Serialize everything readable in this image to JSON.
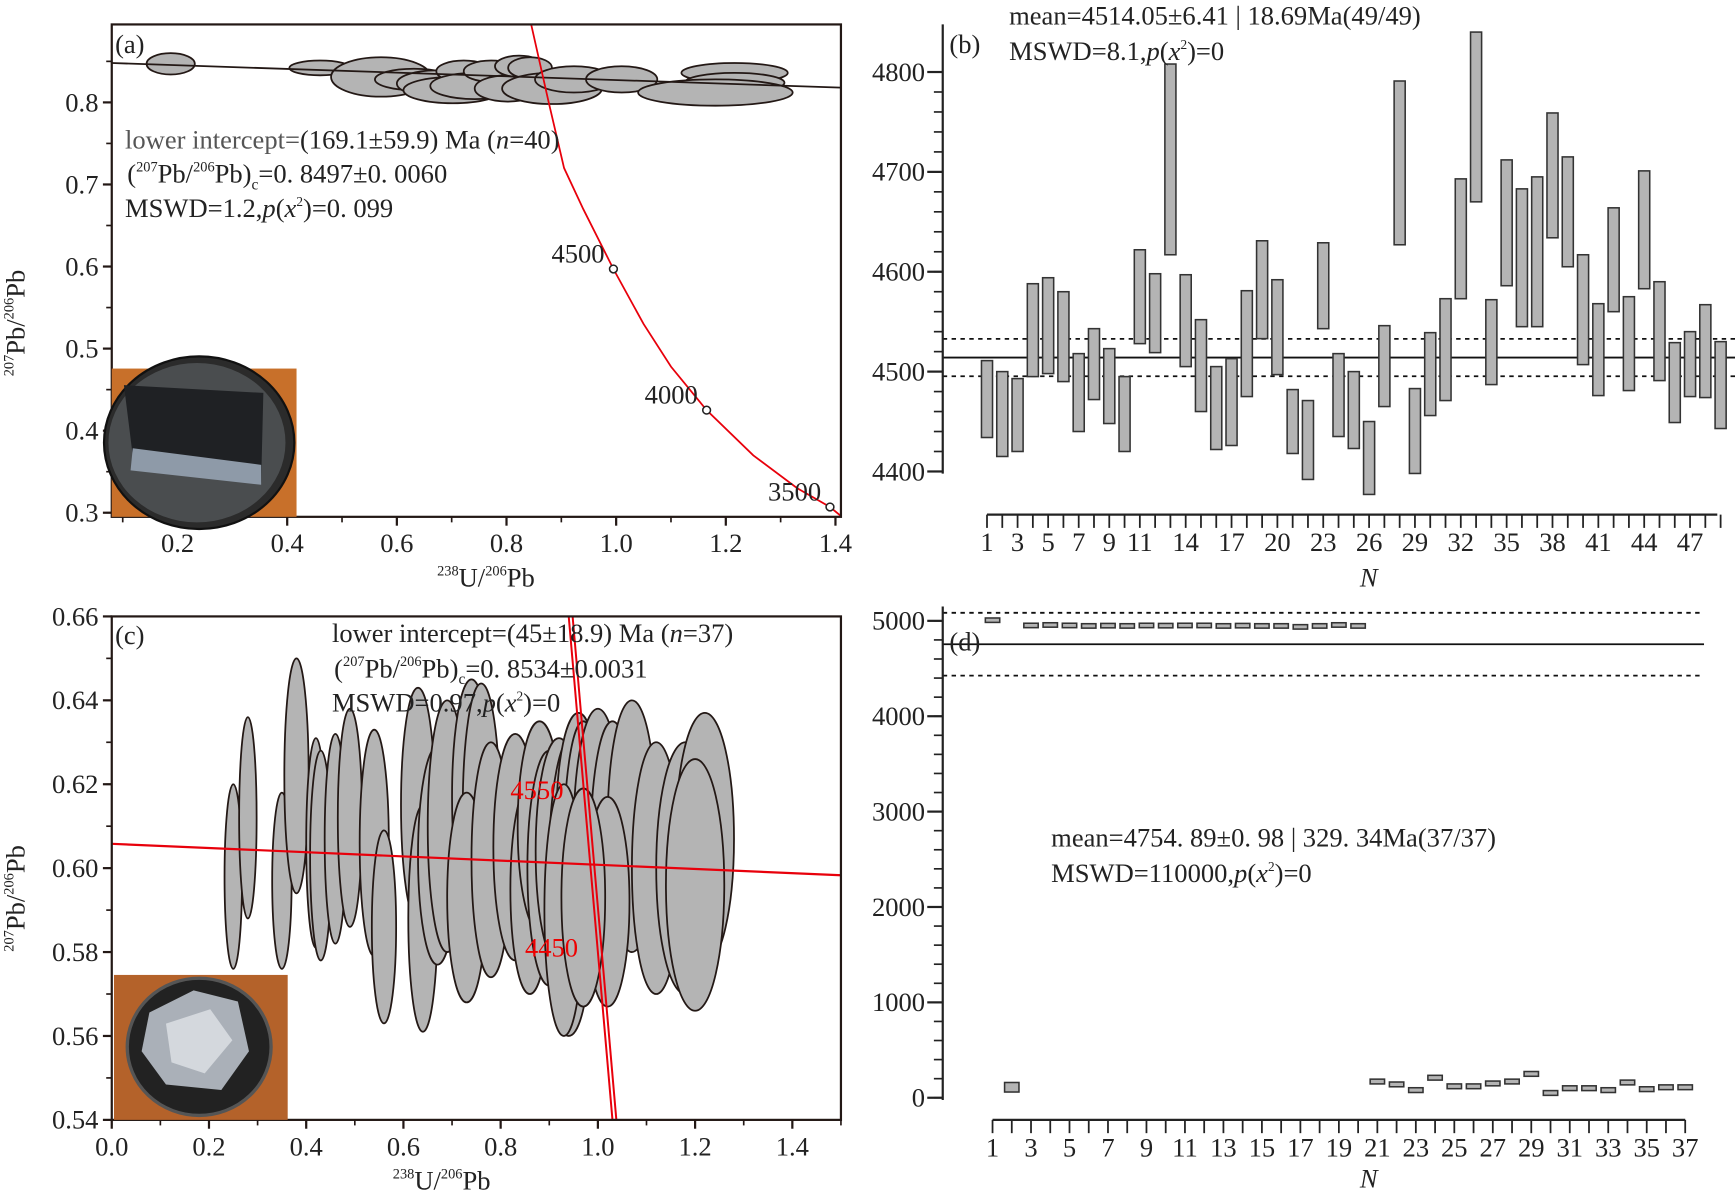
{
  "chart_data": [
    {
      "panel": "(a)",
      "type": "scatter",
      "subtype": "concordia-ellipses",
      "xlabel": {
        "sup1": "238",
        "main1": "U/",
        "sup2": "206",
        "main2": "Pb"
      },
      "ylabel": {
        "sup1": "207",
        "main1": "Pb/",
        "sup2": "206",
        "main2": "Pb"
      },
      "xlim": [
        0.08,
        1.41
      ],
      "ylim": [
        0.295,
        0.895
      ],
      "xticks": [
        "0.2",
        "0.4",
        "0.6",
        "0.8",
        "1.0",
        "1.2",
        "1.4"
      ],
      "xtick_values": [
        0.2,
        0.4,
        0.6,
        0.8,
        1.0,
        1.2,
        1.4
      ],
      "yticks": [
        "0.3",
        "0.4",
        "0.5",
        "0.6",
        "0.7",
        "0.8"
      ],
      "ytick_values": [
        0.3,
        0.4,
        0.5,
        0.6,
        0.7,
        0.8
      ],
      "annotation": {
        "line1_a": "lower intercept=",
        "line1_b": "(169.1±59.9) Ma (",
        "line1_n": "n",
        "line1_c": "=40)",
        "line2_a": "(",
        "line2_s1": "207",
        "line2_b": "Pb/",
        "line2_s2": "206",
        "line2_c": "Pb)",
        "line2_sub": "c",
        "line2_d": "=0. 8497±0. 0060",
        "line3_a": "MSWD=1.2,",
        "line3_p": "p",
        "line3_b": "(",
        "line3_x": "x",
        "line3_sup": "2",
        "line3_c": ")=0. 099"
      },
      "discordia": [
        [
          0.08,
          0.848
        ],
        [
          1.41,
          0.818
        ]
      ],
      "concordia": [
        [
          0.845,
          0.895
        ],
        [
          0.877,
          0.8
        ],
        [
          0.905,
          0.72
        ],
        [
          0.94,
          0.67
        ],
        [
          0.995,
          0.597
        ],
        [
          1.05,
          0.53
        ],
        [
          1.1,
          0.478
        ],
        [
          1.165,
          0.425
        ],
        [
          1.25,
          0.37
        ],
        [
          1.33,
          0.33
        ],
        [
          1.39,
          0.307
        ],
        [
          1.41,
          0.296
        ]
      ],
      "age_markers": [
        {
          "label": "4500",
          "x": 0.995,
          "y": 0.597
        },
        {
          "label": "4000",
          "x": 1.165,
          "y": 0.425
        },
        {
          "label": "3500",
          "x": 1.39,
          "y": 0.307
        }
      ],
      "ellipses": [
        [
          0.1875,
          0.847,
          0.044,
          0.013
        ],
        [
          0.46,
          0.842,
          0.056,
          0.009
        ],
        [
          0.571,
          0.831,
          0.091,
          0.024
        ],
        [
          0.631,
          0.828,
          0.071,
          0.013
        ],
        [
          0.671,
          0.823,
          0.071,
          0.016
        ],
        [
          0.702,
          0.815,
          0.09,
          0.016
        ],
        [
          0.722,
          0.838,
          0.05,
          0.013
        ],
        [
          0.742,
          0.82,
          0.081,
          0.016
        ],
        [
          0.772,
          0.838,
          0.05,
          0.013
        ],
        [
          0.802,
          0.817,
          0.06,
          0.016
        ],
        [
          0.823,
          0.844,
          0.044,
          0.013
        ],
        [
          0.843,
          0.842,
          0.04,
          0.013
        ],
        [
          0.883,
          0.817,
          0.091,
          0.019
        ],
        [
          0.923,
          0.828,
          0.071,
          0.016
        ],
        [
          1.01,
          0.828,
          0.065,
          0.016
        ],
        [
          1.216,
          0.836,
          0.097,
          0.012
        ],
        [
          1.216,
          0.824,
          0.091,
          0.012
        ],
        [
          1.181,
          0.812,
          0.141,
          0.016
        ]
      ]
    },
    {
      "panel": "(b)",
      "type": "bar",
      "subtype": "weighted-mean-error-bars",
      "xlabel": "N",
      "ylim": [
        4400,
        4800
      ],
      "yticks": [
        "4400",
        "4500",
        "4600",
        "4700",
        "4800"
      ],
      "ytick_values": [
        4400,
        4500,
        4600,
        4700,
        4800
      ],
      "xticks": [
        "1",
        "3",
        "5",
        "7",
        "9",
        "11",
        "14",
        "17",
        "20",
        "23",
        "26",
        "29",
        "32",
        "35",
        "38",
        "41",
        "44",
        "47"
      ],
      "n_count": 49,
      "mean": 4514.05,
      "band": [
        4495.36,
        4532.74
      ],
      "annotation": {
        "line1": "mean=4514.05±6.41 | 18.69Ma(49/49)",
        "line2_a": "MSWD=8.1,",
        "line2_p": "p",
        "line2_b": "(",
        "line2_x": "x",
        "line2_sup": "2",
        "line2_c": ")=0"
      },
      "ranges": [
        [
          4434,
          4511
        ],
        [
          4415,
          4500
        ],
        [
          4420,
          4493
        ],
        [
          4495,
          4588
        ],
        [
          4498,
          4594
        ],
        [
          4490,
          4580
        ],
        [
          4440,
          4518
        ],
        [
          4472,
          4543
        ],
        [
          4448,
          4523
        ],
        [
          4420,
          4495
        ],
        [
          4528,
          4622
        ],
        [
          4519,
          4598
        ],
        [
          4617,
          4808
        ],
        [
          4505,
          4597
        ],
        [
          4460,
          4552
        ],
        [
          4422,
          4505
        ],
        [
          4426,
          4513
        ],
        [
          4475,
          4581
        ],
        [
          4533,
          4631
        ],
        [
          4497,
          4592
        ],
        [
          4418,
          4482
        ],
        [
          4392,
          4471
        ],
        [
          4543,
          4629
        ],
        [
          4435,
          4518
        ],
        [
          4423,
          4500
        ],
        [
          4377,
          4450
        ],
        [
          4465,
          4546
        ],
        [
          4627,
          4791
        ],
        [
          4398,
          4483
        ],
        [
          4456,
          4539
        ],
        [
          4471,
          4573
        ],
        [
          4573,
          4693
        ],
        [
          4670,
          4840
        ],
        [
          4487,
          4572
        ],
        [
          4586,
          4712
        ],
        [
          4545,
          4683
        ],
        [
          4545,
          4695
        ],
        [
          4634,
          4759
        ],
        [
          4605,
          4715
        ],
        [
          4507,
          4617
        ],
        [
          4476,
          4568
        ],
        [
          4560,
          4664
        ],
        [
          4481,
          4575
        ],
        [
          4583,
          4701
        ],
        [
          4491,
          4590
        ],
        [
          4449,
          4529
        ],
        [
          4475,
          4540
        ],
        [
          4474,
          4567
        ],
        [
          4443,
          4530
        ]
      ]
    },
    {
      "panel": "(c)",
      "type": "scatter",
      "subtype": "concordia-ellipses",
      "xlabel": {
        "sup1": "238",
        "main1": "U/",
        "sup2": "206",
        "main2": "Pb"
      },
      "ylabel": {
        "sup1": "207",
        "main1": "Pb/",
        "sup2": "206",
        "main2": "Pb"
      },
      "xlim": [
        0.0,
        1.5
      ],
      "ylim": [
        0.54,
        0.66
      ],
      "xticks": [
        "0.0",
        "0.2",
        "0.4",
        "0.6",
        "0.8",
        "1.0",
        "1.2",
        "1.4"
      ],
      "xtick_values": [
        0,
        0.2,
        0.4,
        0.6,
        0.8,
        1.0,
        1.2,
        1.4
      ],
      "yticks": [
        "0.54",
        "0.56",
        "0.58",
        "0.60",
        "0.62",
        "0.64",
        "0.66"
      ],
      "ytick_values": [
        0.54,
        0.56,
        0.58,
        0.6,
        0.62,
        0.64,
        0.66
      ],
      "annotation": {
        "line1_a": "lower intercept=",
        "line1_b": "(45±18.9) Ma (",
        "line1_n": "n",
        "line1_c": "=37)",
        "line2_a": "(",
        "line2_s1": "207",
        "line2_b": "Pb/",
        "line2_s2": "206",
        "line2_c": "Pb)",
        "line2_sub": "c",
        "line2_d": "=0. 8534±0.0031",
        "line3_a": "MSWD=0.97,",
        "line3_p": "p",
        "line3_b": "(",
        "line3_x": "x",
        "line3_sup": "2",
        "line3_c": ")=0"
      },
      "discordia": [
        [
          0.0,
          0.6058
        ],
        [
          1.5,
          0.5983
        ]
      ],
      "concordia": [
        [
          [
            0.94,
            0.66
          ],
          [
            1.03,
            0.54
          ]
        ],
        [
          [
            0.948,
            0.66
          ],
          [
            1.038,
            0.54
          ]
        ]
      ],
      "age_labels": [
        {
          "label": "4550",
          "x": 0.82,
          "y": 0.6165
        },
        {
          "label": "4450",
          "x": 0.85,
          "y": 0.579
        }
      ],
      "ellipses": [
        [
          0.25,
          0.598,
          0.018,
          0.022
        ],
        [
          0.28,
          0.612,
          0.018,
          0.024
        ],
        [
          0.35,
          0.597,
          0.02,
          0.021
        ],
        [
          0.38,
          0.622,
          0.025,
          0.028
        ],
        [
          0.42,
          0.606,
          0.02,
          0.025
        ],
        [
          0.43,
          0.603,
          0.022,
          0.025
        ],
        [
          0.46,
          0.607,
          0.022,
          0.025
        ],
        [
          0.49,
          0.612,
          0.025,
          0.026
        ],
        [
          0.54,
          0.606,
          0.03,
          0.027
        ],
        [
          0.56,
          0.586,
          0.025,
          0.023
        ],
        [
          0.63,
          0.615,
          0.035,
          0.028
        ],
        [
          0.64,
          0.588,
          0.03,
          0.027
        ],
        [
          0.67,
          0.603,
          0.04,
          0.026
        ],
        [
          0.69,
          0.61,
          0.04,
          0.03
        ],
        [
          0.74,
          0.617,
          0.04,
          0.028
        ],
        [
          0.76,
          0.614,
          0.038,
          0.03
        ],
        [
          0.73,
          0.593,
          0.04,
          0.025
        ],
        [
          0.78,
          0.602,
          0.04,
          0.028
        ],
        [
          0.83,
          0.605,
          0.045,
          0.027
        ],
        [
          0.86,
          0.595,
          0.04,
          0.025
        ],
        [
          0.88,
          0.61,
          0.045,
          0.025
        ],
        [
          0.9,
          0.6,
          0.045,
          0.028
        ],
        [
          0.92,
          0.604,
          0.048,
          0.027
        ],
        [
          0.95,
          0.602,
          0.05,
          0.03
        ],
        [
          0.96,
          0.612,
          0.045,
          0.025
        ],
        [
          0.97,
          0.605,
          0.04,
          0.03
        ],
        [
          0.94,
          0.585,
          0.045,
          0.025
        ],
        [
          0.93,
          0.59,
          0.04,
          0.03
        ],
        [
          1.0,
          0.608,
          0.05,
          0.03
        ],
        [
          1.03,
          0.605,
          0.045,
          0.03
        ],
        [
          1.07,
          0.61,
          0.05,
          0.03
        ],
        [
          1.02,
          0.592,
          0.045,
          0.025
        ],
        [
          1.12,
          0.6,
          0.05,
          0.03
        ],
        [
          1.18,
          0.6,
          0.06,
          0.03
        ],
        [
          1.22,
          0.607,
          0.06,
          0.03
        ],
        [
          1.2,
          0.596,
          0.06,
          0.03
        ],
        [
          0.97,
          0.593,
          0.045,
          0.026
        ]
      ]
    },
    {
      "panel": "(d)",
      "type": "bar",
      "subtype": "weighted-mean-error-bars",
      "xlabel": "N",
      "ylim": [
        0,
        5000
      ],
      "yticks": [
        "0",
        "1000",
        "2000",
        "3000",
        "4000",
        "5000"
      ],
      "ytick_values": [
        0,
        1000,
        2000,
        3000,
        4000,
        5000
      ],
      "xticks": [
        "1",
        "3",
        "5",
        "7",
        "9",
        "11",
        "13",
        "15",
        "17",
        "19",
        "21",
        "23",
        "25",
        "27",
        "29",
        "31",
        "33",
        "35",
        "37"
      ],
      "n_count": 37,
      "mean": 4754.89,
      "band": [
        4425.55,
        5084.23
      ],
      "annotation": {
        "line1": "mean=4754. 89±0. 98 | 329. 34Ma(37/37)",
        "line2_a": "MSWD=110000,",
        "line2_p": "p",
        "line2_b": "(",
        "line2_x": "x",
        "line2_sup": "2",
        "line2_c": ")=0"
      },
      "ranges": [
        [
          4990,
          5030
        ],
        [
          60,
          160
        ],
        [
          4950,
          4975
        ],
        [
          4955,
          4980
        ],
        [
          4950,
          4975
        ],
        [
          4945,
          4970
        ],
        [
          4948,
          4973
        ],
        [
          4945,
          4970
        ],
        [
          4950,
          4975
        ],
        [
          4948,
          4973
        ],
        [
          4950,
          4975
        ],
        [
          4950,
          4975
        ],
        [
          4945,
          4970
        ],
        [
          4948,
          4973
        ],
        [
          4945,
          4970
        ],
        [
          4945,
          4970
        ],
        [
          4935,
          4960
        ],
        [
          4945,
          4970
        ],
        [
          4955,
          4980
        ],
        [
          4945,
          4970
        ],
        [
          145,
          195
        ],
        [
          115,
          165
        ],
        [
          55,
          105
        ],
        [
          185,
          235
        ],
        [
          95,
          145
        ],
        [
          95,
          145
        ],
        [
          125,
          175
        ],
        [
          145,
          195
        ],
        [
          225,
          275
        ],
        [
          25,
          75
        ],
        [
          75,
          125
        ],
        [
          75,
          125
        ],
        [
          55,
          105
        ],
        [
          135,
          185
        ],
        [
          65,
          115
        ],
        [
          85,
          135
        ],
        [
          85,
          135
        ]
      ]
    }
  ],
  "colors": {
    "ellipse_fill": "#b4b4b4",
    "bar_fill": "#b4b4b4",
    "concordia": "#e8000b",
    "stroke": "#231815"
  }
}
